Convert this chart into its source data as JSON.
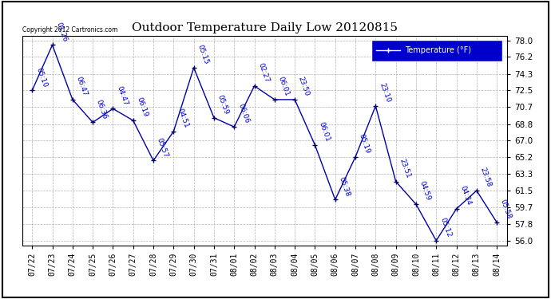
{
  "title": "Outdoor Temperature Daily Low 20120815",
  "copyright_text": "Copyright 2012 Cartronics.com",
  "legend_label": "Temperature (°F)",
  "dates": [
    "07/22",
    "07/23",
    "07/24",
    "07/25",
    "07/26",
    "07/27",
    "07/28",
    "07/29",
    "07/30",
    "07/31",
    "08/01",
    "08/02",
    "08/03",
    "08/04",
    "08/05",
    "08/06",
    "08/07",
    "08/08",
    "08/09",
    "08/10",
    "08/11",
    "08/12",
    "08/13",
    "08/14"
  ],
  "temps": [
    72.5,
    77.5,
    71.5,
    69.0,
    70.5,
    69.2,
    64.8,
    68.0,
    75.0,
    69.5,
    68.5,
    73.0,
    71.5,
    71.5,
    66.5,
    60.5,
    65.2,
    70.8,
    62.5,
    60.0,
    56.0,
    59.5,
    61.5,
    58.0
  ],
  "time_labels": [
    "05:10",
    "01:26",
    "06:47",
    "06:36",
    "04:47",
    "06:19",
    "05:57",
    "04:51",
    "05:15",
    "05:59",
    "06:06",
    "02:27",
    "06:01",
    "23:50",
    "06:01",
    "05:38",
    "05:19",
    "23:10",
    "23:51",
    "04:59",
    "05:12",
    "04:34",
    "23:58",
    "05:58"
  ],
  "line_color": "#0000aa",
  "marker_color": "#000055",
  "bg_color": "#ffffff",
  "grid_color": "#aaaaaa",
  "ylim": [
    55.5,
    78.5
  ],
  "yticks": [
    56.0,
    57.8,
    59.7,
    61.5,
    63.3,
    65.2,
    67.0,
    68.8,
    70.7,
    72.5,
    74.3,
    76.2,
    78.0
  ],
  "legend_bg": "#0000cc",
  "legend_fg": "#ffffff",
  "title_color": "#000000",
  "label_color": "#0000cc",
  "label_fontsize": 6.5,
  "title_fontsize": 11,
  "outer_border_color": "#000000"
}
